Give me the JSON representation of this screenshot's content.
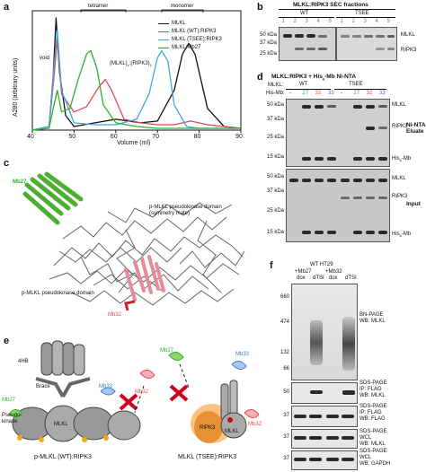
{
  "panels": {
    "a": "a",
    "b": "b",
    "c": "c",
    "d": "d",
    "e": "e",
    "f": "f"
  },
  "colors": {
    "mlkl": "#111111",
    "wt": "#e0475f",
    "tsee": "#3fa9e0",
    "mb27": "#2bb22b",
    "mb32": "#e5494f",
    "mb33": "#3a7fd5"
  },
  "panel_a": {
    "chart_data": {
      "type": "line",
      "xlabel": "Volume (ml)",
      "ylabel": "A280 (arbitrary units)",
      "xlim": [
        40,
        90
      ],
      "xticks": [
        40,
        50,
        60,
        70,
        80,
        90
      ],
      "yticks": [],
      "legend_position": "top-right",
      "series": [
        {
          "name": "MLKL",
          "x": [
            40,
            44,
            45,
            45.7,
            46.5,
            48,
            50,
            55,
            60,
            66,
            70,
            74,
            76,
            77.5,
            79,
            82,
            86,
            90
          ],
          "values": [
            0,
            0.02,
            0.3,
            0.62,
            0.32,
            0.08,
            0.02,
            0.04,
            0.06,
            0.04,
            0.05,
            0.22,
            0.42,
            0.48,
            0.42,
            0.12,
            0.02,
            0.01
          ]
        },
        {
          "name": "MLKL (WT):RIPK3",
          "x": [
            40,
            44,
            45,
            46,
            47,
            50,
            53,
            56,
            57.5,
            59,
            62,
            66,
            70,
            74,
            78,
            82,
            86,
            90
          ],
          "values": [
            0,
            0.02,
            0.25,
            0.5,
            0.2,
            0.1,
            0.13,
            0.24,
            0.28,
            0.22,
            0.06,
            0.04,
            0.03,
            0.03,
            0.05,
            0.03,
            0.02,
            0.01
          ]
        },
        {
          "name": "MLKL (TSEE):RIPK3",
          "x": [
            40,
            44,
            45,
            46,
            47,
            50,
            55,
            60,
            65,
            68,
            70,
            71,
            72.5,
            74,
            77,
            80,
            85,
            90
          ],
          "values": [
            0,
            0.02,
            0.3,
            0.55,
            0.22,
            0.04,
            0.03,
            0.03,
            0.06,
            0.2,
            0.4,
            0.44,
            0.38,
            0.14,
            0.02,
            0.01,
            0.01,
            0.01
          ]
        },
        {
          "name": "MLKL:Mb27",
          "x": [
            40,
            44,
            45,
            46,
            47,
            49,
            51,
            53,
            54,
            55.5,
            57,
            60,
            65,
            70,
            75,
            80,
            90
          ],
          "values": [
            0,
            0.01,
            0.12,
            0.22,
            0.1,
            0.12,
            0.28,
            0.42,
            0.44,
            0.34,
            0.14,
            0.04,
            0.02,
            0.01,
            0.01,
            0.01,
            0.01
          ]
        }
      ],
      "annotations": [
        "void",
        "tetramer",
        "monomer",
        "(MLKL)",
        "(RIPK3)"
      ]
    },
    "legend": [
      "MLKL",
      "MLKL (WT):RIPK3",
      "MLKL (TSEE):RIPK3",
      "MLKL:Mb27"
    ],
    "void": "void",
    "tetramer": "tetramer",
    "monomer": "monomer",
    "complex_a": "(MLKL)",
    "complex_b": "(RIPK3)",
    "sub_x": "x",
    "sub_1": "1",
    "xlabel": "Volume (ml)",
    "ylabel": "A280 (arbitrary units)",
    "xticks": [
      "40",
      "50",
      "60",
      "70",
      "80",
      "90"
    ]
  },
  "panel_b": {
    "title": "MLKL:RIPK3 SEC fractions",
    "wt": "WT",
    "tsee": "TSEE",
    "lanes_wt": [
      "1",
      "2",
      "3",
      "4",
      "5"
    ],
    "lanes_tsee": [
      "1",
      "2",
      "3",
      "4",
      "5"
    ],
    "markers": [
      "50 kDa",
      "37 kDa",
      "25 kDa"
    ],
    "right": [
      "MLKL",
      "RIPK3"
    ]
  },
  "panel_c": {
    "mb27": "Mb27",
    "symmetry": "p-MLKL pseudokinase domain (symmetry mate)",
    "pk": "p-MLKL pseudokinase domain",
    "mb32": "Mb32"
  },
  "panel_d": {
    "title_a": "MLKL:RIPK3 + His",
    "title_sub": "6",
    "title_b": "-Mb Ni-NTA",
    "mlkl_row": "MLKL:",
    "hismb_row": "His-Mb:",
    "wt": "WT",
    "tsee": "TSEE",
    "lanes": [
      "-",
      "27",
      "32",
      "33",
      "-",
      "27",
      "32",
      "33"
    ],
    "eluate_markers": [
      "50 kDa",
      "37 kDa",
      "25 kDa",
      "15 kDa"
    ],
    "input_markers": [
      "50 kDa",
      "37 kDa",
      "25 kDa",
      "15 kDa"
    ],
    "eluate_right": [
      "MLKL",
      "RIPK3",
      "His"
    ],
    "input_right": [
      "MLKL",
      "RIPK3",
      "His"
    ],
    "his_sub": "6",
    "his_suffix": "-Mb",
    "eluate_label": "Ni-NTA Eluate",
    "input_label": "Input"
  },
  "panel_e": {
    "labels_left": [
      "4HB",
      "Brace",
      "Pseudo-kinase",
      "Mb27",
      "Mb33",
      "Mb32",
      "MLKL"
    ],
    "caption_left": "p-MLKL (WT):RIPK3",
    "labels_right": [
      "Mb27",
      "Mb33",
      "Mb32",
      "RIPK3",
      "MLKL"
    ],
    "caption_right": "MLKL (TSEE):RIPK3"
  },
  "panel_f": {
    "header": "WT HT29",
    "plus_mb27": "+Mb27",
    "plus_mb32": "+Mb32",
    "lanes": [
      "dox",
      "dTSI",
      "dox",
      "dTSI"
    ],
    "bn_markers": [
      "660",
      "474",
      "132",
      "66"
    ],
    "sds_markers": [
      "50",
      "37",
      "37",
      "37"
    ],
    "blots": [
      "BN-PAGE\nWB: MLKL",
      "SDS-PAGE\nIP: FLAG\nWB: MLKL",
      "SDS-PAGE\nIP: FLAG\nWB: FLAG",
      "SDS-PAGE\nWCL\nWB: MLKL",
      "SDS-PAGE\nWCL\nWB: GAPDH"
    ]
  }
}
